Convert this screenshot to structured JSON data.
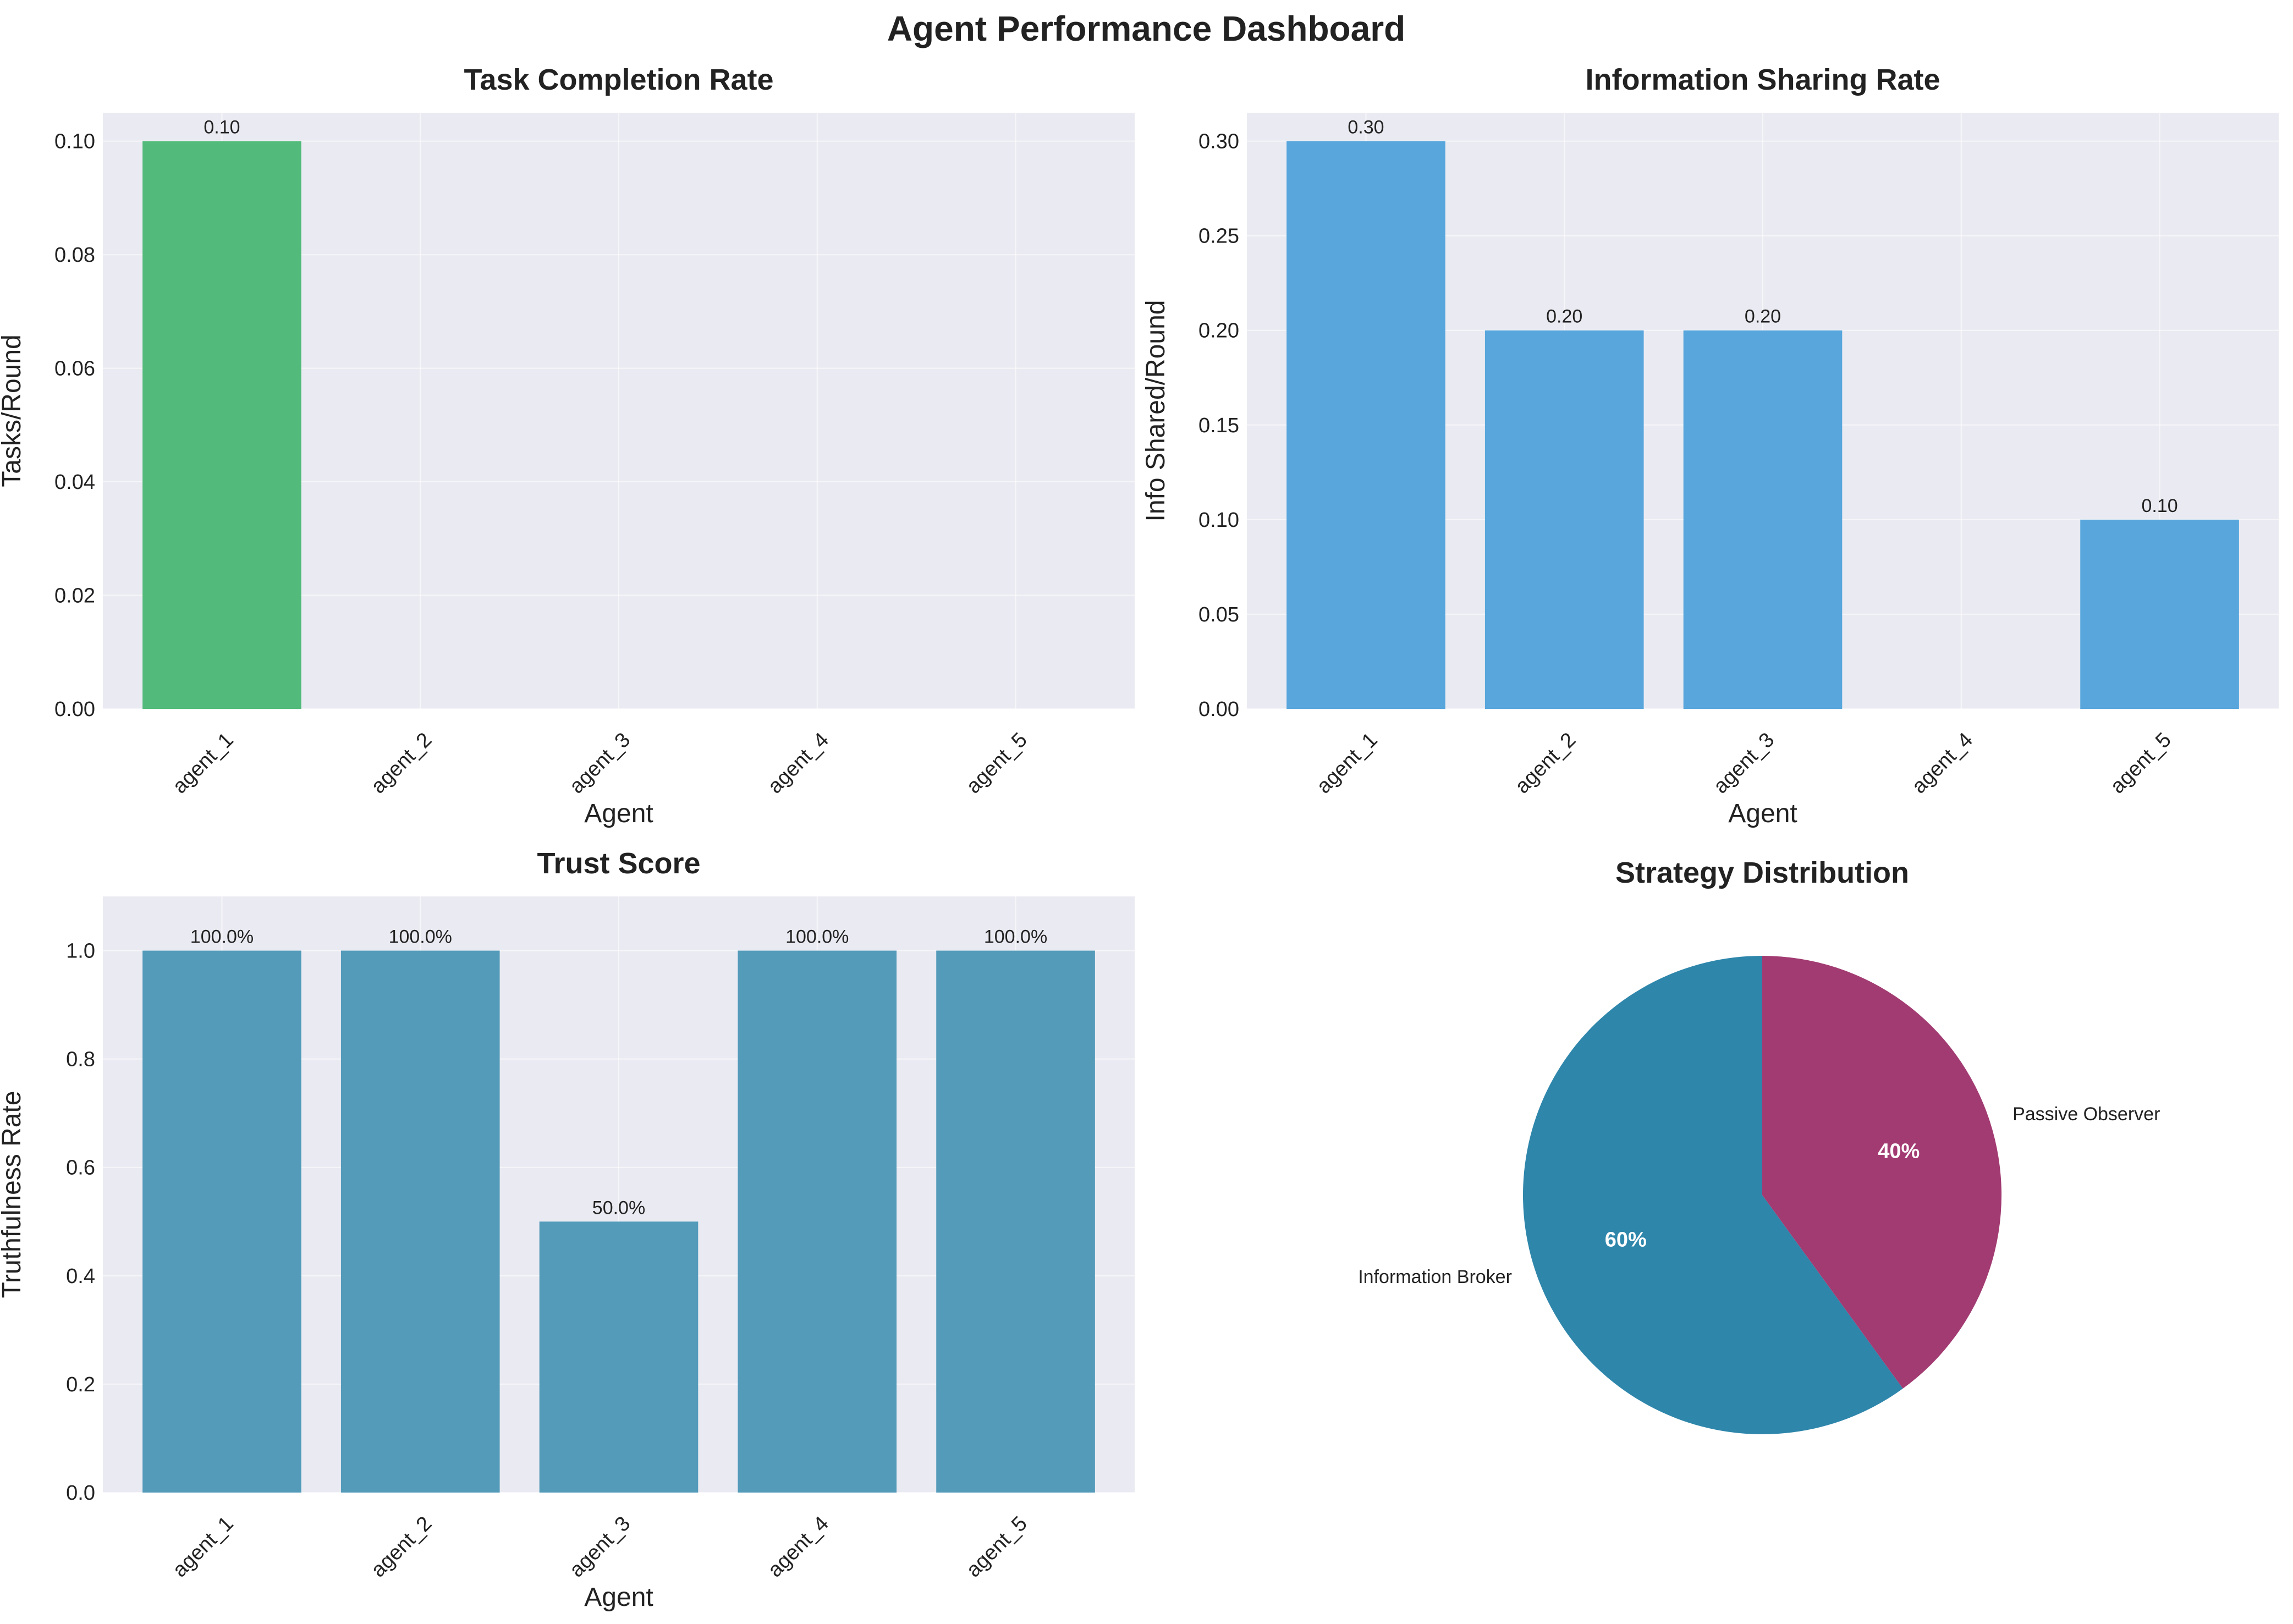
{
  "title": "Agent Performance Dashboard",
  "chart_data": [
    {
      "type": "bar",
      "title": "Task Completion Rate",
      "xlabel": "Agent",
      "ylabel": "Tasks/Round",
      "categories": [
        "agent_1",
        "agent_2",
        "agent_3",
        "agent_4",
        "agent_5"
      ],
      "values": [
        0.1,
        0,
        0,
        0,
        0
      ],
      "data_labels": [
        "0.10",
        "",
        "",
        "",
        ""
      ],
      "ylim": [
        0,
        0.105
      ],
      "yticks": [
        0.0,
        0.02,
        0.04,
        0.06,
        0.08,
        0.1
      ],
      "ytick_labels": [
        "0.00",
        "0.02",
        "0.04",
        "0.06",
        "0.08",
        "0.10"
      ],
      "color": "#52bb7b",
      "grid": true
    },
    {
      "type": "bar",
      "title": "Information Sharing Rate",
      "xlabel": "Agent",
      "ylabel": "Info Shared/Round",
      "categories": [
        "agent_1",
        "agent_2",
        "agent_3",
        "agent_4",
        "agent_5"
      ],
      "values": [
        0.3,
        0.2,
        0.2,
        0,
        0.1
      ],
      "data_labels": [
        "0.30",
        "0.20",
        "0.20",
        "",
        "0.10"
      ],
      "ylim": [
        0,
        0.315
      ],
      "yticks": [
        0.0,
        0.05,
        0.1,
        0.15,
        0.2,
        0.25,
        0.3
      ],
      "ytick_labels": [
        "0.00",
        "0.05",
        "0.10",
        "0.15",
        "0.20",
        "0.25",
        "0.30"
      ],
      "color": "#58a6dc",
      "grid": true
    },
    {
      "type": "bar",
      "title": "Trust Score",
      "xlabel": "Agent",
      "ylabel": "Truthfulness Rate",
      "categories": [
        "agent_1",
        "agent_2",
        "agent_3",
        "agent_4",
        "agent_5"
      ],
      "values": [
        1.0,
        1.0,
        0.5,
        1.0,
        1.0
      ],
      "data_labels": [
        "100.0%",
        "100.0%",
        "50.0%",
        "100.0%",
        "100.0%"
      ],
      "ylim": [
        0,
        1.1
      ],
      "yticks": [
        0.0,
        0.2,
        0.4,
        0.6,
        0.8,
        1.0
      ],
      "ytick_labels": [
        "0.0",
        "0.2",
        "0.4",
        "0.6",
        "0.8",
        "1.0"
      ],
      "color": "#549bba",
      "grid": true
    },
    {
      "type": "pie",
      "title": "Strategy Distribution",
      "slices": [
        {
          "label": "Information Broker",
          "value": 60,
          "pct_label": "60%",
          "color": "#2e86ab"
        },
        {
          "label": "Passive Observer",
          "value": 40,
          "pct_label": "40%",
          "color": "#a23b72"
        }
      ]
    }
  ]
}
